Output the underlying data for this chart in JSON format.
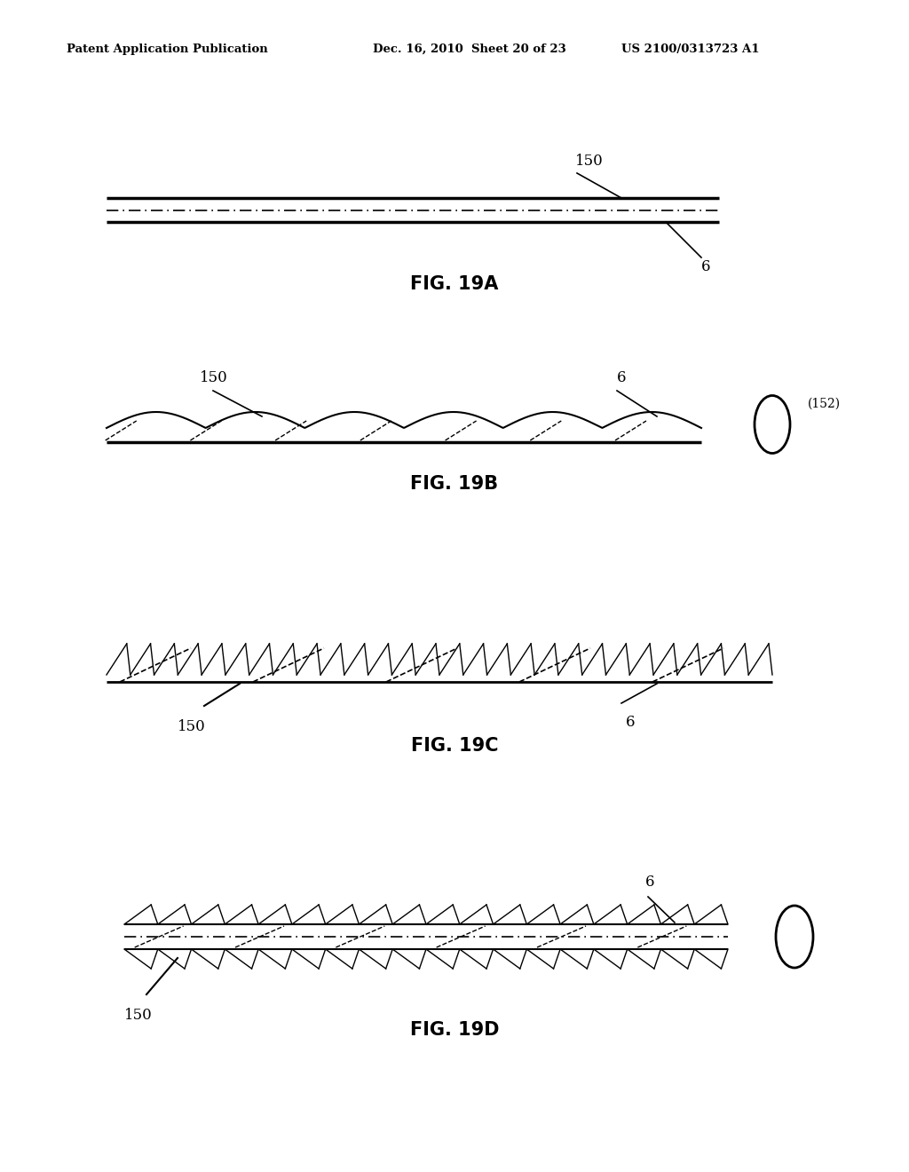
{
  "bg_color": "#ffffff",
  "header_left": "Patent Application Publication",
  "header_mid": "Dec. 16, 2010  Sheet 20 of 23",
  "header_right": "US 2100/0313723 A1",
  "fig_labels": [
    "FIG. 19A",
    "FIG. 19B",
    "FIG. 19C",
    "FIG. 19D"
  ]
}
